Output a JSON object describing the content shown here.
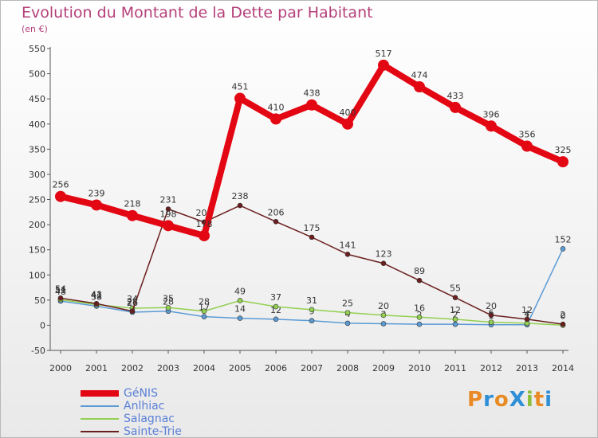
{
  "title": "Evolution du Montant de la Dette par Habitant",
  "subtitle": "(en €)",
  "logo": {
    "text": "Proxiti",
    "letters": [
      {
        "ch": "P",
        "color": "#e98b25"
      },
      {
        "ch": "r",
        "color": "#2e8fd6"
      },
      {
        "ch": "o",
        "color": "#e98b25"
      },
      {
        "ch": "X",
        "color": "#2e8fd6"
      },
      {
        "ch": "i",
        "color": "#8bbf3a"
      },
      {
        "ch": "t",
        "color": "#e98b25"
      },
      {
        "ch": "i",
        "color": "#2e8fd6"
      }
    ]
  },
  "chart_data": {
    "type": "line",
    "x": [
      2000,
      2001,
      2002,
      2003,
      2004,
      2005,
      2006,
      2007,
      2008,
      2009,
      2010,
      2011,
      2012,
      2013,
      2014
    ],
    "ylim": [
      -50,
      550
    ],
    "yticks": [
      -50,
      0,
      50,
      100,
      150,
      200,
      250,
      300,
      350,
      400,
      450,
      500,
      550
    ],
    "grid": false,
    "legend_position": "bottom-left",
    "series": [
      {
        "name": "GéNIS",
        "color": "#e30613",
        "values": [
          256,
          239,
          218,
          198,
          178,
          451,
          410,
          438,
          400,
          517,
          474,
          433,
          396,
          356,
          325
        ]
      },
      {
        "name": "Anlhiac",
        "color": "#5b9bd5",
        "values": [
          48,
          38,
          26,
          28,
          17,
          14,
          12,
          9,
          4,
          3,
          2,
          2,
          1,
          1,
          152
        ]
      },
      {
        "name": "Salagnac",
        "color": "#92d050",
        "values": [
          51,
          41,
          34,
          35,
          28,
          49,
          37,
          31,
          25,
          20,
          16,
          12,
          6,
          4,
          0
        ]
      },
      {
        "name": "Sainte-Trie",
        "color": "#6b1e1e",
        "values": [
          54,
          43,
          28,
          231,
          205,
          238,
          206,
          175,
          141,
          123,
          89,
          55,
          20,
          12,
          2
        ]
      }
    ]
  }
}
